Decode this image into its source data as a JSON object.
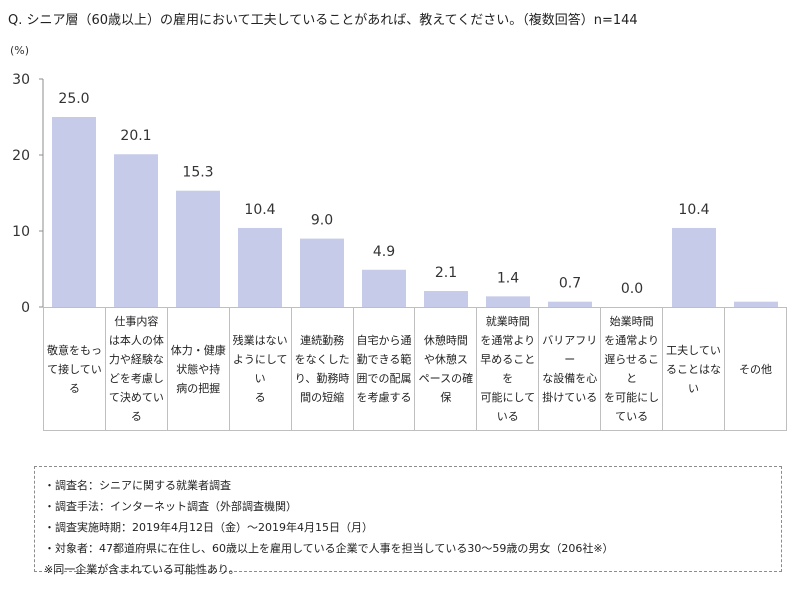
{
  "question": "Q. シニア層（60歳以上）の雇用において工夫していることがあれば、教えてください。（複数回答）n=144",
  "chart_data": {
    "type": "bar",
    "unit_label": "(%)",
    "ylim": [
      0,
      30
    ],
    "yticks": [
      0,
      10,
      20,
      30
    ],
    "grid": false,
    "bar_color": "#c5cbe8",
    "categories": [
      "敬意をもっ\nて接してい\nる",
      "仕事内容\nは本人の体\n力や経験な\nどを考慮し\nて決めてい\nる",
      "体力・健康\n状態や持\n病の把握",
      "残業はない\nようにしてい\nる",
      "連続勤務\nをなくした\nり、勤務時\n間の短縮",
      "自宅から通\n勤できる範\n囲での配属\nを考慮する",
      "休憩時間\nや休憩ス\nペースの確\n保",
      "就業時間\nを通常より\n早めることを\n可能にして\nいる",
      "バリアフリー\nな設備を心\n掛けている",
      "始業時間\nを通常より\n遅らせること\nを可能にし\nている",
      "工夫してい\nることはない",
      "その他"
    ],
    "values": [
      25.0,
      20.1,
      15.3,
      10.4,
      9.0,
      4.9,
      2.1,
      1.4,
      0.7,
      0.0,
      10.4,
      0.7
    ],
    "data_labels": [
      "25.0",
      "20.1",
      "15.3",
      "10.4",
      "9.0",
      "4.9",
      "2.1",
      "1.4",
      "0.7",
      "0.0",
      "10.4",
      ""
    ]
  },
  "notes": [
    "・調査名：シニアに関する就業者調査",
    "・調査手法：インターネット調査（外部調査機関）",
    "・調査実施時期：2019年4月12日（金）～2019年4月15日（月）",
    "・対象者：47都道府県に在住し、60歳以上を雇用している企業で人事を担当している30～59歳の男女（206社※）",
    "※同一企業が含まれている可能性あり。"
  ]
}
